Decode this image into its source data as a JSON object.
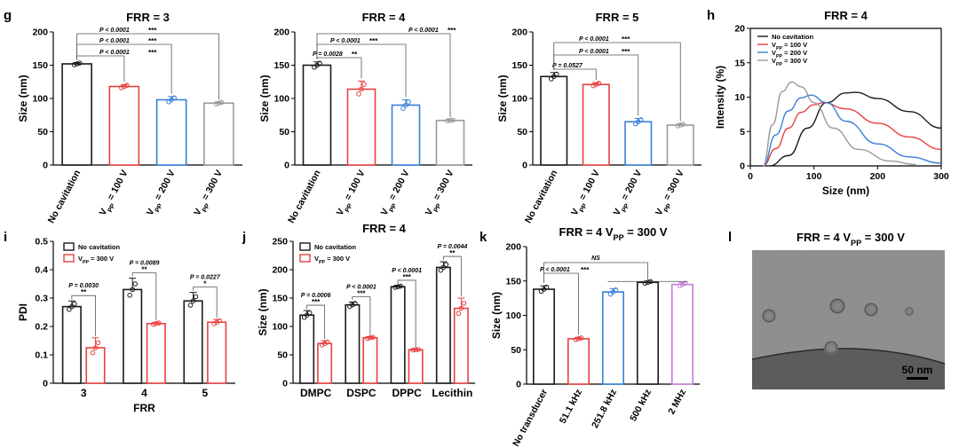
{
  "colors": {
    "black": "#1a1a1a",
    "red": "#e8413f",
    "blue": "#3a7fd5",
    "gray": "#9a9a9a",
    "violet": "#c77ddb"
  },
  "panel_letters": {
    "g": "g",
    "h": "h",
    "i": "i",
    "j": "j",
    "k": "k",
    "l": "l"
  },
  "subs": {
    "pp": "PP"
  },
  "chart_data": [
    {
      "id": "g1",
      "type": "bar",
      "title": "FRR = 3",
      "ylabel": "Size (nm)",
      "xlabel": "",
      "ylim": [
        0,
        200
      ],
      "yticks": [
        0,
        50,
        100,
        150,
        200
      ],
      "categories": [
        "No cavitation",
        "V_PP = 100 V",
        "V_PP = 200 V",
        "V_PP = 300 V"
      ],
      "values": [
        152,
        118,
        98,
        93
      ],
      "errors": [
        2,
        3,
        5,
        2
      ],
      "colors": [
        "#1a1a1a",
        "#e8413f",
        "#3a7fd5",
        "#9a9a9a"
      ],
      "comparisons": [
        {
          "pair": [
            0,
            1
          ],
          "p": "P < 0.0001",
          "stars": "***"
        },
        {
          "pair": [
            0,
            2
          ],
          "p": "P < 0.0001",
          "stars": "***"
        },
        {
          "pair": [
            0,
            3
          ],
          "p": "P < 0.0001",
          "stars": "***"
        }
      ]
    },
    {
      "id": "g2",
      "type": "bar",
      "title": "FRR = 4",
      "ylabel": "Size (nm)",
      "xlabel": "",
      "ylim": [
        0,
        200
      ],
      "yticks": [
        0,
        50,
        100,
        150,
        200
      ],
      "categories": [
        "No cavitation",
        "V_PP = 100 V",
        "V_PP = 200 V",
        "V_PP = 300 V"
      ],
      "values": [
        150,
        114,
        90,
        67
      ],
      "errors": [
        5,
        12,
        8,
        1
      ],
      "colors": [
        "#1a1a1a",
        "#e8413f",
        "#3a7fd5",
        "#9a9a9a"
      ],
      "comparisons": [
        {
          "pair": [
            0,
            1
          ],
          "p": "P = 0.0028",
          "stars": "**"
        },
        {
          "pair": [
            0,
            2
          ],
          "p": "P < 0.0001",
          "stars": "***"
        },
        {
          "pair": [
            0,
            3
          ],
          "p": "P < 0.0001",
          "stars": "***"
        }
      ]
    },
    {
      "id": "g3",
      "type": "bar",
      "title": "FRR = 5",
      "ylabel": "Size (nm)",
      "xlabel": "",
      "ylim": [
        0,
        200
      ],
      "yticks": [
        0,
        50,
        100,
        150,
        200
      ],
      "categories": [
        "No cavitation",
        "V_PP = 100 V",
        "V_PP = 200 V",
        "V_PP = 300 V"
      ],
      "values": [
        133,
        121,
        65,
        60
      ],
      "errors": [
        6,
        3,
        5,
        2
      ],
      "colors": [
        "#1a1a1a",
        "#e8413f",
        "#3a7fd5",
        "#9a9a9a"
      ],
      "comparisons": [
        {
          "pair": [
            0,
            1
          ],
          "p": "P = 0.0527",
          "stars": ""
        },
        {
          "pair": [
            0,
            2
          ],
          "p": "P < 0.0001",
          "stars": "***"
        },
        {
          "pair": [
            0,
            3
          ],
          "p": "P < 0.0001",
          "stars": "***"
        }
      ]
    },
    {
      "id": "h",
      "type": "line",
      "title": "FRR = 4",
      "xlabel": "Size (nm)",
      "ylabel": "Intensity (%)",
      "xlim": [
        0,
        300
      ],
      "ylim": [
        0,
        20
      ],
      "xticks": [
        0,
        100,
        200,
        300
      ],
      "yticks": [
        0,
        5,
        10,
        15,
        20
      ],
      "series": [
        {
          "name": "No cavitation",
          "color": "#1a1a1a",
          "points": [
            [
              30,
              0
            ],
            [
              60,
              1.5
            ],
            [
              90,
              5.5
            ],
            [
              120,
              9.2
            ],
            [
              150,
              10.6
            ],
            [
              165,
              10.7
            ],
            [
              200,
              9.8
            ],
            [
              250,
              7.9
            ],
            [
              300,
              5.5
            ]
          ]
        },
        {
          "name": "V_PP = 100 V",
          "color": "#e8413f",
          "points": [
            [
              20,
              0
            ],
            [
              40,
              2.5
            ],
            [
              60,
              5.5
            ],
            [
              80,
              7.8
            ],
            [
              100,
              8.9
            ],
            [
              115,
              9.2
            ],
            [
              150,
              8.3
            ],
            [
              200,
              6.2
            ],
            [
              250,
              4.2
            ],
            [
              300,
              2.4
            ]
          ]
        },
        {
          "name": "V_PP = 200 V",
          "color": "#3a7fd5",
          "points": [
            [
              20,
              0
            ],
            [
              40,
              4.5
            ],
            [
              60,
              8.0
            ],
            [
              80,
              9.9
            ],
            [
              95,
              10.3
            ],
            [
              120,
              9.2
            ],
            [
              150,
              6.5
            ],
            [
              200,
              3.2
            ],
            [
              250,
              1.3
            ],
            [
              300,
              0.4
            ]
          ]
        },
        {
          "name": "V_PP = 300 V",
          "color": "#9a9a9a",
          "points": [
            [
              20,
              0
            ],
            [
              35,
              6.0
            ],
            [
              50,
              10.8
            ],
            [
              65,
              12.2
            ],
            [
              80,
              11.5
            ],
            [
              100,
              9.2
            ],
            [
              130,
              5.5
            ],
            [
              170,
              2.4
            ],
            [
              220,
              0.7
            ],
            [
              260,
              0.2
            ]
          ]
        }
      ]
    },
    {
      "id": "i",
      "type": "bar",
      "title": "",
      "xlabel": "FRR",
      "ylabel": "PDI",
      "ylim": [
        0,
        0.5
      ],
      "yticks": [
        0,
        0.1,
        0.2,
        0.3,
        0.4,
        0.5
      ],
      "yticklabels": [
        "0",
        "0.1",
        "0.2",
        "0.3",
        "0.4",
        "0.5"
      ],
      "categories": [
        "3",
        "4",
        "5"
      ],
      "series": [
        {
          "name": "No cavitation",
          "color": "#1a1a1a",
          "values": [
            0.27,
            0.33,
            0.29
          ],
          "errors": [
            0.02,
            0.04,
            0.03
          ]
        },
        {
          "name": "V_PP = 300 V",
          "color": "#e8413f",
          "values": [
            0.125,
            0.21,
            0.215
          ],
          "errors": [
            0.035,
            0.005,
            0.01
          ]
        }
      ],
      "comparisons": [
        {
          "group": 0,
          "p": "P = 0.0030",
          "stars": "**"
        },
        {
          "group": 1,
          "p": "P = 0.0089",
          "stars": "**"
        },
        {
          "group": 2,
          "p": "P = 0.0227",
          "stars": "*"
        }
      ]
    },
    {
      "id": "j",
      "type": "bar",
      "title": "FRR = 4",
      "xlabel": "",
      "ylabel": "Size (nm)",
      "ylim": [
        0,
        250
      ],
      "yticks": [
        0,
        50,
        100,
        150,
        200,
        250
      ],
      "categories": [
        "DMPC",
        "DSPC",
        "DPPC",
        "Lecithin"
      ],
      "series": [
        {
          "name": "No cavitation",
          "color": "#1a1a1a",
          "values": [
            120,
            138,
            170,
            204
          ],
          "errors": [
            8,
            5,
            2,
            10
          ]
        },
        {
          "name": "V_PP = 300 V",
          "color": "#e8413f",
          "values": [
            70,
            80,
            59,
            132
          ],
          "errors": [
            5,
            2,
            1,
            18
          ]
        }
      ],
      "comparisons": [
        {
          "group": 0,
          "p": "P = 0.0006",
          "stars": "***"
        },
        {
          "group": 1,
          "p": "P < 0.0001",
          "stars": "***"
        },
        {
          "group": 2,
          "p": "P < 0.0001",
          "stars": "***"
        },
        {
          "group": 3,
          "p": "P = 0.0044",
          "stars": "**"
        }
      ]
    },
    {
      "id": "k",
      "type": "bar",
      "title": "FRR = 4  V_PP = 300 V",
      "xlabel": "",
      "ylabel": "Size (nm)",
      "ylim": [
        0,
        200
      ],
      "yticks": [
        0,
        50,
        100,
        150,
        200
      ],
      "categories": [
        "No transducer",
        "51.1 kHz",
        "251.8 kHz",
        "500 kHz",
        "2 MHz"
      ],
      "values": [
        138,
        66,
        134,
        148,
        145
      ],
      "errors": [
        5,
        2,
        5,
        2,
        3
      ],
      "colors": [
        "#1a1a1a",
        "#e8413f",
        "#3a7fd5",
        "#1a1a1a",
        "#c77ddb"
      ],
      "comparisons": [
        {
          "pair": [
            0,
            1
          ],
          "p": "P < 0.0001",
          "stars": "***"
        },
        {
          "span": [
            2,
            4
          ],
          "to": 0,
          "p": "",
          "stars": "NS"
        }
      ]
    },
    {
      "id": "l",
      "type": "image",
      "title": "FRR = 4  V_PP = 300 V",
      "scale_bar": "50 nm"
    }
  ]
}
